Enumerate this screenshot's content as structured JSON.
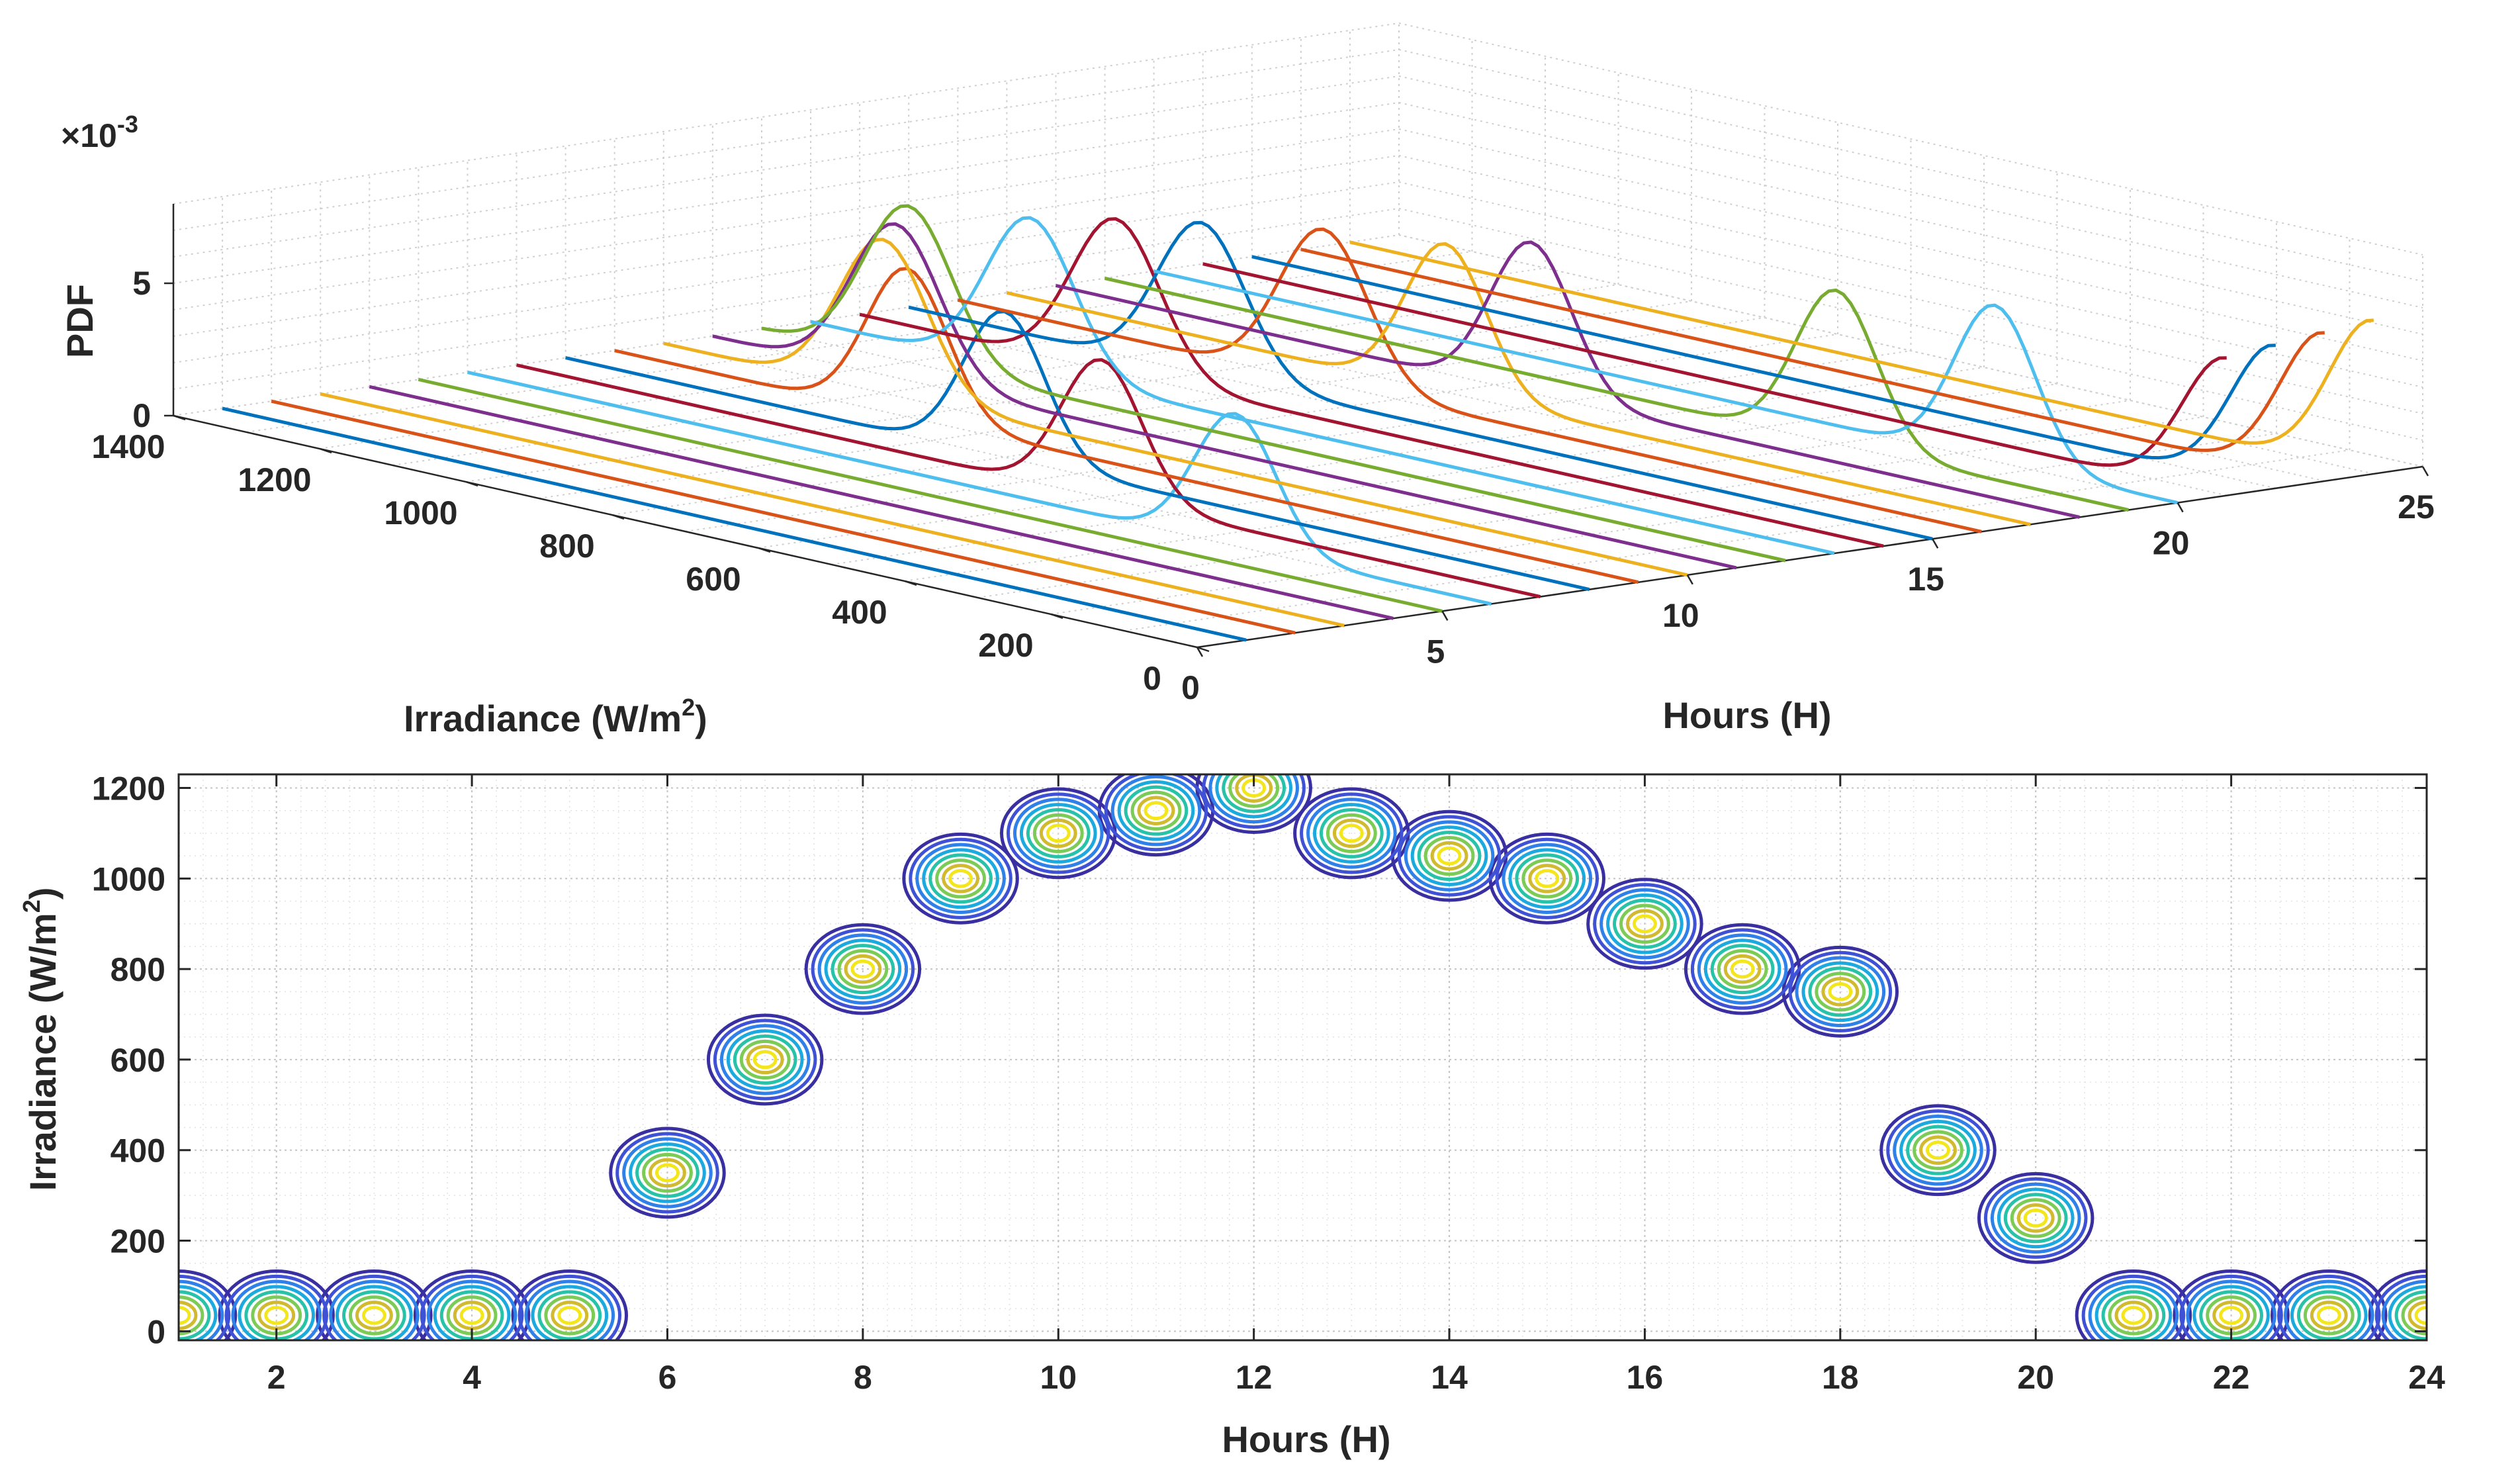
{
  "chart_data": [
    {
      "type": "line",
      "view": "3d-waterfall",
      "title": "",
      "exponent_label": "×10",
      "exponent_value": "-3",
      "xlabel": "Hours (H)",
      "ylabel_main": "Irradiance (W/m",
      "ylabel_sup": "2",
      "ylabel_close": ")",
      "zlabel": "PDF",
      "xlim": [
        0,
        25
      ],
      "ylim": [
        0,
        1400
      ],
      "zlim": [
        0,
        8
      ],
      "x_ticks": [
        "0",
        "5",
        "10",
        "15",
        "20",
        "25"
      ],
      "y_ticks": [
        "0",
        "200",
        "400",
        "600",
        "800",
        "1000",
        "1200",
        "1400"
      ],
      "z_ticks": [
        "0",
        "5"
      ],
      "colors": [
        "#0072BD",
        "#D95319",
        "#EDB120",
        "#7E2F8E",
        "#77AC30",
        "#4DBEEE",
        "#A2142F"
      ],
      "series": [
        {
          "hour": 1,
          "mean": 0,
          "peak": 0,
          "sigma": 60
        },
        {
          "hour": 2,
          "mean": 0,
          "peak": 0,
          "sigma": 60
        },
        {
          "hour": 3,
          "mean": 0,
          "peak": 0,
          "sigma": 60
        },
        {
          "hour": 4,
          "mean": 0,
          "peak": 0,
          "sigma": 60
        },
        {
          "hour": 5,
          "mean": 0,
          "peak": 0,
          "sigma": 60
        },
        {
          "hour": 6,
          "mean": 350,
          "peak": 5.0,
          "sigma": 55
        },
        {
          "hour": 7,
          "mean": 600,
          "peak": 5.2,
          "sigma": 55
        },
        {
          "hour": 8,
          "mean": 800,
          "peak": 5.5,
          "sigma": 55
        },
        {
          "hour": 9,
          "mean": 1000,
          "peak": 5.6,
          "sigma": 55
        },
        {
          "hour": 10,
          "mean": 1100,
          "peak": 5.8,
          "sigma": 60
        },
        {
          "hour": 11,
          "mean": 1150,
          "peak": 5.8,
          "sigma": 60
        },
        {
          "hour": 12,
          "mean": 1200,
          "peak": 5.9,
          "sigma": 60
        },
        {
          "hour": 13,
          "mean": 1100,
          "peak": 5.8,
          "sigma": 60
        },
        {
          "hour": 14,
          "mean": 1050,
          "peak": 5.8,
          "sigma": 60
        },
        {
          "hour": 15,
          "mean": 1000,
          "peak": 5.7,
          "sigma": 60
        },
        {
          "hour": 16,
          "mean": 900,
          "peak": 5.8,
          "sigma": 60
        },
        {
          "hour": 17,
          "mean": 800,
          "peak": 5.6,
          "sigma": 55
        },
        {
          "hour": 18,
          "mean": 750,
          "peak": 5.7,
          "sigma": 55
        },
        {
          "hour": 19,
          "mean": 400,
          "peak": 5.8,
          "sigma": 55
        },
        {
          "hour": 20,
          "mean": 250,
          "peak": 5.9,
          "sigma": 55
        },
        {
          "hour": 21,
          "mean": 0,
          "peak": 5.2,
          "sigma": 60
        },
        {
          "hour": 22,
          "mean": 0,
          "peak": 5.4,
          "sigma": 60
        },
        {
          "hour": 23,
          "mean": 0,
          "peak": 5.6,
          "sigma": 60
        },
        {
          "hour": 24,
          "mean": 0,
          "peak": 5.8,
          "sigma": 60
        }
      ]
    },
    {
      "type": "contour",
      "title": "",
      "xlabel": "Hours (H)",
      "ylabel_main": "Irradiance (W/m",
      "ylabel_sup": "2",
      "ylabel_close": ")",
      "xlim": [
        1,
        24
      ],
      "ylim": [
        -20,
        1230
      ],
      "x_ticks": [
        2,
        4,
        6,
        8,
        10,
        12,
        14,
        16,
        18,
        20,
        22,
        24
      ],
      "y_ticks": [
        0,
        200,
        400,
        600,
        800,
        1000,
        1200
      ],
      "levels": 8,
      "level_colors": [
        "#3A2FA0",
        "#3F51D4",
        "#2F80E8",
        "#1CA9DE",
        "#27C2A8",
        "#7CCB57",
        "#D1BA30",
        "#F4E61C"
      ],
      "peaks": [
        {
          "hour": 1,
          "irradiance": 35
        },
        {
          "hour": 2,
          "irradiance": 35
        },
        {
          "hour": 3,
          "irradiance": 35
        },
        {
          "hour": 4,
          "irradiance": 35
        },
        {
          "hour": 5,
          "irradiance": 35
        },
        {
          "hour": 6,
          "irradiance": 350
        },
        {
          "hour": 7,
          "irradiance": 600
        },
        {
          "hour": 8,
          "irradiance": 800
        },
        {
          "hour": 9,
          "irradiance": 1000
        },
        {
          "hour": 10,
          "irradiance": 1100
        },
        {
          "hour": 11,
          "irradiance": 1150
        },
        {
          "hour": 12,
          "irradiance": 1200
        },
        {
          "hour": 13,
          "irradiance": 1100
        },
        {
          "hour": 14,
          "irradiance": 1050
        },
        {
          "hour": 15,
          "irradiance": 1000
        },
        {
          "hour": 16,
          "irradiance": 900
        },
        {
          "hour": 17,
          "irradiance": 800
        },
        {
          "hour": 18,
          "irradiance": 750
        },
        {
          "hour": 19,
          "irradiance": 400
        },
        {
          "hour": 20,
          "irradiance": 250
        },
        {
          "hour": 21,
          "irradiance": 35
        },
        {
          "hour": 22,
          "irradiance": 35
        },
        {
          "hour": 23,
          "irradiance": 35
        },
        {
          "hour": 24,
          "irradiance": 35
        }
      ]
    }
  ]
}
